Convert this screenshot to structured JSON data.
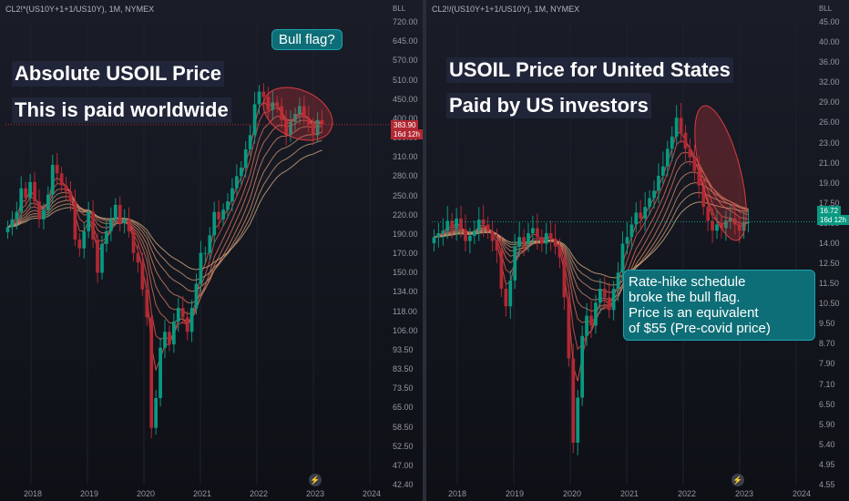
{
  "colors": {
    "up": "#089981",
    "down": "#b22833",
    "ellipse": "#e03a3e",
    "callout": "#0e6e77",
    "heading_bg": "#22263a"
  },
  "left_chart": {
    "symbol": "CL2!*(US10Y+1+1/US10Y), 1M, NYMEX",
    "unit": "BLL",
    "heading_line1": "Absolute USOIL Price",
    "heading_line2": "This is paid worldwide",
    "callout": "Bull flag?",
    "price_label": "383.90",
    "countdown_label": "16d 12h",
    "flash_icon": "lightning-icon",
    "y_ticks": [
      "720.00",
      "645.00",
      "570.00",
      "510.00",
      "450.00",
      "400.00",
      "350.00",
      "310.00",
      "280.00",
      "250.00",
      "220.00",
      "190.00",
      "170.00",
      "150.00",
      "134.00",
      "118.00",
      "106.00",
      "93.50",
      "83.50",
      "73.50",
      "65.00",
      "58.50",
      "52.50",
      "47.00",
      "42.40"
    ],
    "x_ticks": [
      "2018",
      "2019",
      "2020",
      "2021",
      "2022",
      "2023",
      "2024"
    ]
  },
  "right_chart": {
    "symbol": "CL2!/(US10Y+1+1/US10Y), 1M, NYMEX",
    "unit": "BLL",
    "heading_line1": "USOIL Price for United States",
    "heading_line2": "Paid by US investors",
    "callout_lines": [
      "Rate-hike schedule",
      "broke the bull flag.",
      "Price is an equivalent",
      "of $55 (Pre-covid price)"
    ],
    "price_label": "16.72",
    "countdown_label": "16d 12h",
    "flash_icon": "lightning-icon",
    "y_ticks": [
      "45.00",
      "40.00",
      "36.00",
      "32.00",
      "29.00",
      "26.00",
      "23.00",
      "21.00",
      "19.00",
      "17.50",
      "15.50",
      "14.00",
      "12.50",
      "11.50",
      "10.50",
      "9.50",
      "8.70",
      "7.90",
      "7.10",
      "6.50",
      "5.90",
      "5.40",
      "4.95",
      "4.55"
    ],
    "x_ticks": [
      "2018",
      "2019",
      "2020",
      "2021",
      "2022",
      "2023",
      "2024"
    ]
  },
  "chart_data": [
    {
      "type": "candlestick",
      "title": "Absolute USOIL Price",
      "symbol": "CL2!*(US10Y+1+1/US10Y), 1M, NYMEX",
      "y_scale": "log",
      "ylim": [
        42.4,
        720
      ],
      "xlim": [
        "2017-06",
        "2024-03"
      ],
      "last_price": 383.9,
      "annotations": [
        "Bull flag?"
      ],
      "monthly_closes_approx": [
        205,
        215,
        225,
        260,
        245,
        270,
        240,
        215,
        228,
        250,
        300,
        285,
        265,
        255,
        240,
        190,
        180,
        200,
        225,
        190,
        155,
        185,
        200,
        215,
        235,
        210,
        215,
        200,
        175,
        165,
        140,
        118,
        60,
        72,
        98,
        108,
        100,
        115,
        125,
        118,
        108,
        125,
        145,
        175,
        175,
        195,
        225,
        215,
        228,
        240,
        260,
        280,
        295,
        330,
        360,
        435,
        470,
        455,
        420,
        440,
        430,
        395,
        360,
        390,
        410,
        430,
        400,
        385,
        360,
        395,
        383.9
      ],
      "moving_averages": "ribbon of exponential moving averages (red/orange/tan)"
    },
    {
      "type": "candlestick",
      "title": "USOIL Price for United States",
      "symbol": "CL2!/(US10Y+1+1/US10Y), 1M, NYMEX",
      "y_scale": "log",
      "ylim": [
        4.55,
        45
      ],
      "xlim": [
        "2017-06",
        "2024-03"
      ],
      "last_price": 16.72,
      "annotations": [
        "Rate-hike schedule broke the bull flag. Price is an equivalent of $55 (Pre-covid price)"
      ],
      "monthly_closes_approx": [
        15.5,
        15.8,
        16.0,
        16.8,
        16.2,
        17.0,
        16.1,
        15.2,
        15.6,
        16.0,
        16.9,
        16.5,
        16.0,
        15.2,
        14.5,
        12.0,
        11.0,
        12.5,
        14.8,
        15.5,
        15.0,
        15.8,
        16.2,
        15.5,
        15.0,
        15.8,
        15.4,
        14.8,
        14.0,
        11.5,
        8.5,
        5.6,
        7.0,
        9.5,
        10.5,
        10.0,
        11.2,
        12.0,
        11.5,
        10.8,
        12.0,
        13.0,
        15.0,
        15.5,
        16.5,
        17.5,
        17.0,
        18.0,
        18.8,
        19.5,
        21.0,
        22.0,
        24.0,
        25.5,
        28.0,
        26.0,
        24.0,
        23.0,
        21.5,
        20.0,
        18.0,
        16.8,
        16.0,
        16.5,
        16.2,
        16.8,
        17.0,
        16.5,
        16.0,
        16.7,
        16.72
      ],
      "moving_averages": "ribbon of exponential moving averages (red/orange/tan)"
    }
  ]
}
